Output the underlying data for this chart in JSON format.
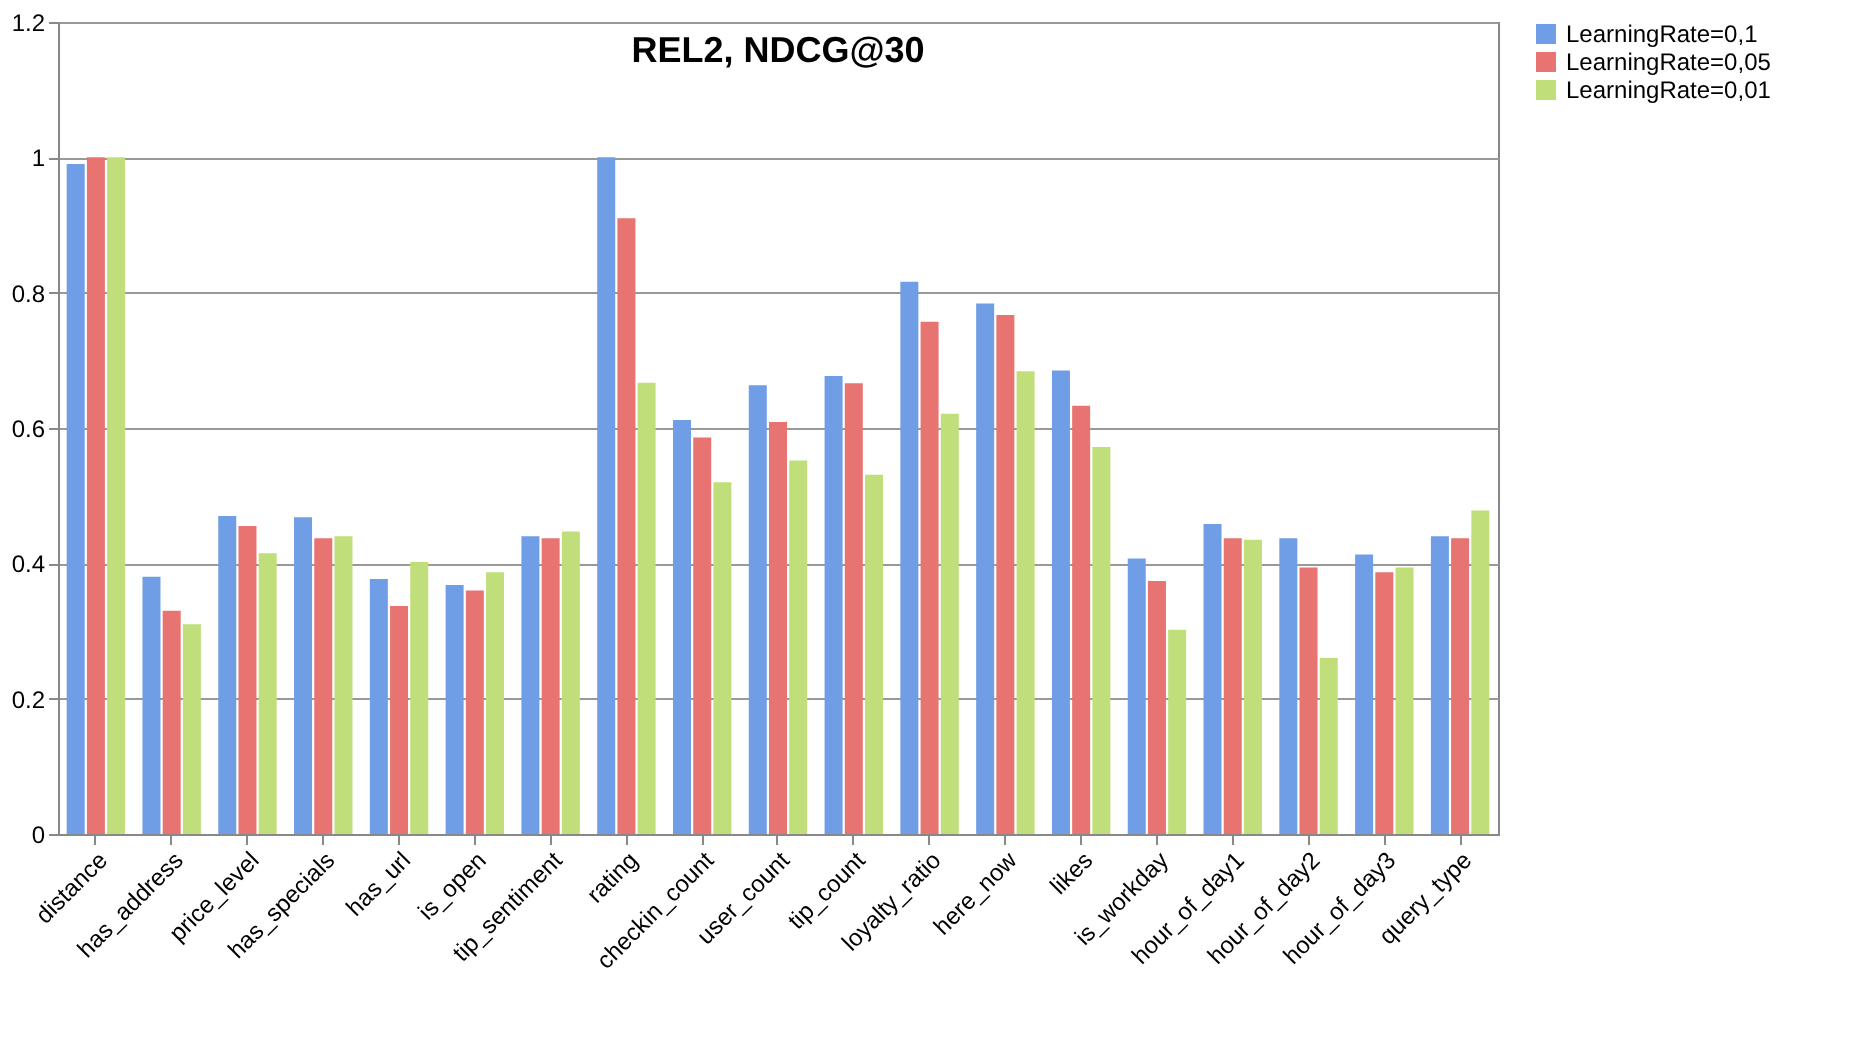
{
  "chart_data": {
    "type": "bar",
    "title": "REL2, NDCG@30",
    "categories": [
      "distance",
      "has_address",
      "price_level",
      "has_specials",
      "has_url",
      "is_open",
      "tip_sentiment",
      "rating",
      "checkin_count",
      "user_count",
      "tip_count",
      "loyalty_ratio",
      "here_now",
      "likes",
      "is_workday",
      "hour_of_day1",
      "hour_of_day2",
      "hour_of_day3",
      "query_type"
    ],
    "series": [
      {
        "name": "LearningRate=0,1",
        "color": "#6f9de6",
        "values": [
          0.99,
          0.38,
          0.47,
          0.468,
          0.377,
          0.368,
          0.44,
          1.0,
          0.612,
          0.663,
          0.677,
          0.816,
          0.784,
          0.685,
          0.407,
          0.458,
          0.437,
          0.413,
          0.44
        ]
      },
      {
        "name": "LearningRate=0,05",
        "color": "#e77470",
        "values": [
          1.0,
          0.33,
          0.455,
          0.437,
          0.337,
          0.36,
          0.437,
          0.91,
          0.586,
          0.609,
          0.666,
          0.757,
          0.767,
          0.633,
          0.374,
          0.437,
          0.394,
          0.387,
          0.437
        ]
      },
      {
        "name": "LearningRate=0,01",
        "color": "#c0df7a",
        "values": [
          1.0,
          0.31,
          0.415,
          0.44,
          0.402,
          0.387,
          0.447,
          0.667,
          0.52,
          0.552,
          0.531,
          0.621,
          0.684,
          0.572,
          0.302,
          0.435,
          0.26,
          0.394,
          0.478
        ]
      }
    ],
    "ylim": [
      0,
      1.2
    ],
    "yticks": [
      0,
      0.2,
      0.4,
      0.6,
      0.8,
      1,
      1.2
    ],
    "grid": "y",
    "legend": "right"
  }
}
